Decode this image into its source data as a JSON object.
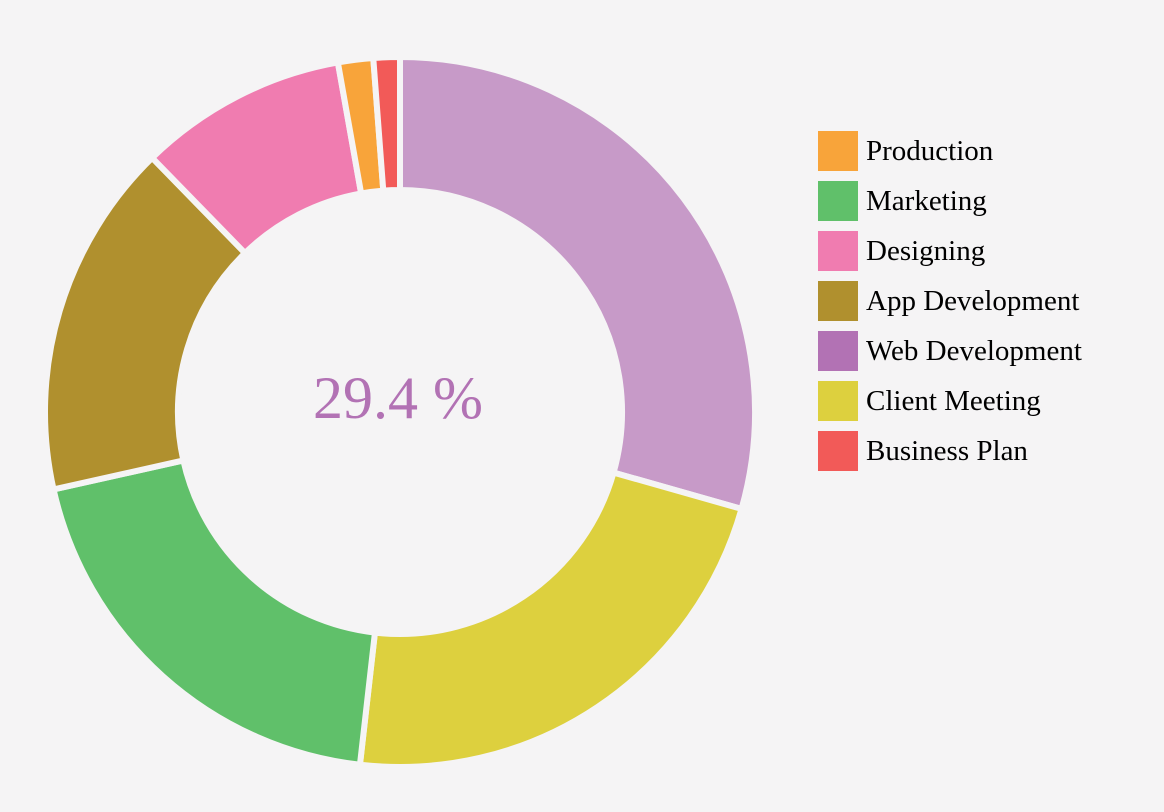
{
  "chart_data": {
    "type": "pie",
    "variant": "donut",
    "center_label": "29.4 %",
    "center_label_color": "#b272b4",
    "legend_position": "right",
    "legend": [
      {
        "label": "Production",
        "color": "#f8a43a"
      },
      {
        "label": "Marketing",
        "color": "#60c06a"
      },
      {
        "label": "Designing",
        "color": "#f07cb0"
      },
      {
        "label": "App Development",
        "color": "#b0902e"
      },
      {
        "label": "Web Development",
        "color": "#b272b4"
      },
      {
        "label": "Client Meeting",
        "color": "#ddd03e"
      },
      {
        "label": "Business Plan",
        "color": "#f25a58"
      }
    ],
    "slices": [
      {
        "label": "Web Development",
        "value": 29.4,
        "color": "#c79ac8"
      },
      {
        "label": "Client Meeting",
        "value": 22.4,
        "color": "#ddd03e"
      },
      {
        "label": "Marketing",
        "value": 19.7,
        "color": "#60c06a"
      },
      {
        "label": "App Development",
        "value": 16.2,
        "color": "#b0902e"
      },
      {
        "label": "Designing",
        "value": 9.5,
        "color": "#f07cb0"
      },
      {
        "label": "Production",
        "value": 1.6,
        "color": "#f8a43a"
      },
      {
        "label": "Business Plan",
        "value": 1.2,
        "color": "#f25a58"
      }
    ]
  }
}
